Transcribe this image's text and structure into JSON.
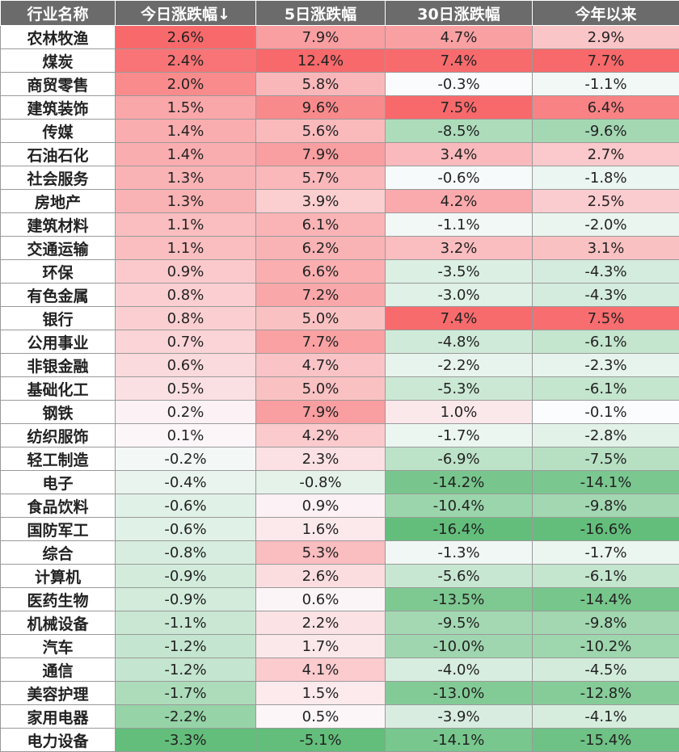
{
  "chart_data": {
    "type": "table",
    "columns": [
      "行业名称",
      "今日涨跌幅↓",
      "5日涨跌幅",
      "30日涨跌幅",
      "今年以来"
    ],
    "rows": [
      [
        "农林牧渔",
        "2.6%",
        "7.9%",
        "4.7%",
        "2.9%"
      ],
      [
        "煤炭",
        "2.4%",
        "12.4%",
        "7.4%",
        "7.7%"
      ],
      [
        "商贸零售",
        "2.0%",
        "5.8%",
        "-0.3%",
        "-1.1%"
      ],
      [
        "建筑装饰",
        "1.5%",
        "9.6%",
        "7.5%",
        "6.4%"
      ],
      [
        "传媒",
        "1.4%",
        "5.6%",
        "-8.5%",
        "-9.6%"
      ],
      [
        "石油石化",
        "1.4%",
        "7.9%",
        "3.4%",
        "2.7%"
      ],
      [
        "社会服务",
        "1.3%",
        "5.7%",
        "-0.6%",
        "-1.8%"
      ],
      [
        "房地产",
        "1.3%",
        "3.9%",
        "4.2%",
        "2.5%"
      ],
      [
        "建筑材料",
        "1.1%",
        "6.1%",
        "-1.1%",
        "-2.0%"
      ],
      [
        "交通运输",
        "1.1%",
        "6.2%",
        "3.2%",
        "3.1%"
      ],
      [
        "环保",
        "0.9%",
        "6.6%",
        "-3.5%",
        "-4.3%"
      ],
      [
        "有色金属",
        "0.8%",
        "7.2%",
        "-3.0%",
        "-4.3%"
      ],
      [
        "银行",
        "0.8%",
        "5.0%",
        "7.4%",
        "7.5%"
      ],
      [
        "公用事业",
        "0.7%",
        "7.7%",
        "-4.8%",
        "-6.1%"
      ],
      [
        "非银金融",
        "0.6%",
        "4.7%",
        "-2.2%",
        "-2.3%"
      ],
      [
        "基础化工",
        "0.5%",
        "5.0%",
        "-5.3%",
        "-6.1%"
      ],
      [
        "钢铁",
        "0.2%",
        "7.9%",
        "1.0%",
        "-0.1%"
      ],
      [
        "纺织服饰",
        "0.1%",
        "4.2%",
        "-1.7%",
        "-2.8%"
      ],
      [
        "轻工制造",
        "-0.2%",
        "2.3%",
        "-6.9%",
        "-7.5%"
      ],
      [
        "电子",
        "-0.4%",
        "-0.8%",
        "-14.2%",
        "-14.1%"
      ],
      [
        "食品饮料",
        "-0.6%",
        "0.9%",
        "-10.4%",
        "-9.8%"
      ],
      [
        "国防军工",
        "-0.6%",
        "1.6%",
        "-16.4%",
        "-16.6%"
      ],
      [
        "综合",
        "-0.8%",
        "5.3%",
        "-1.3%",
        "-1.7%"
      ],
      [
        "计算机",
        "-0.9%",
        "2.6%",
        "-5.6%",
        "-6.1%"
      ],
      [
        "医药生物",
        "-0.9%",
        "0.6%",
        "-13.5%",
        "-14.4%"
      ],
      [
        "机械设备",
        "-1.1%",
        "2.2%",
        "-9.5%",
        "-9.8%"
      ],
      [
        "汽车",
        "-1.2%",
        "1.7%",
        "-10.0%",
        "-10.2%"
      ],
      [
        "通信",
        "-1.2%",
        "4.1%",
        "-4.0%",
        "-4.5%"
      ],
      [
        "美容护理",
        "-1.7%",
        "1.5%",
        "-13.0%",
        "-12.8%"
      ],
      [
        "家用电器",
        "-2.2%",
        "0.5%",
        "-3.9%",
        "-4.1%"
      ],
      [
        "电力设备",
        "-3.3%",
        "-5.1%",
        "-14.1%",
        "-15.4%"
      ]
    ]
  },
  "colors": {
    "header_bg": "#6b6b6b",
    "positive_max": "#f8696b",
    "neutral": "#fcfcff",
    "negative_max": "#63be7b"
  }
}
